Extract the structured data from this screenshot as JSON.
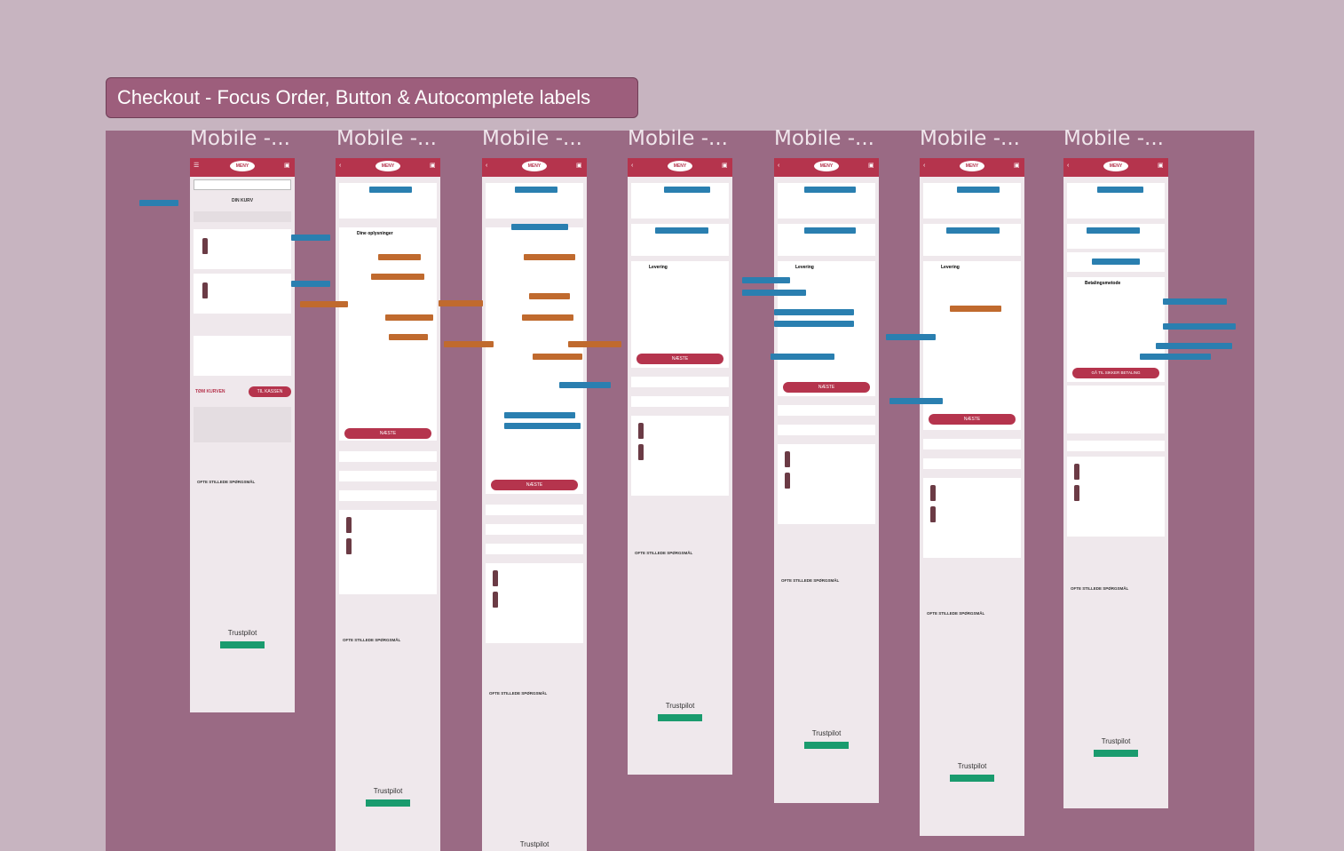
{
  "section_title": "Checkout - Focus Order, Button & Autocomplete labels",
  "frames": [
    {
      "label": "Mobile -..."
    },
    {
      "label": "Mobile -..."
    },
    {
      "label": "Mobile -..."
    },
    {
      "label": "Mobile -..."
    },
    {
      "label": "Mobile -..."
    },
    {
      "label": "Mobile -..."
    },
    {
      "label": "Mobile -..."
    }
  ],
  "phone": {
    "logo": "MENY",
    "trustpilot": "Trustpilot",
    "next_button": "NÆSTE",
    "empty_cart": "TØM KURVEN",
    "checkout": "TIL KASSEN",
    "safe_payment": "GÅ TIL SIKKER BETALING",
    "faq_title": "OFTE STILLEDE SPØRGSMÅL",
    "basket_title": "DIN KURV",
    "your_info": "Dine oplysninger",
    "delivery": "Levering",
    "payment_method": "Betalingsmetode"
  },
  "colors": {
    "background": "#c7b4c0",
    "panel": "#9a6a84",
    "title_bg": "#9d5e7c",
    "brand_red": "#b5344d",
    "annotation_blue": "#2a7fb0",
    "annotation_orange": "#c06a2e"
  }
}
